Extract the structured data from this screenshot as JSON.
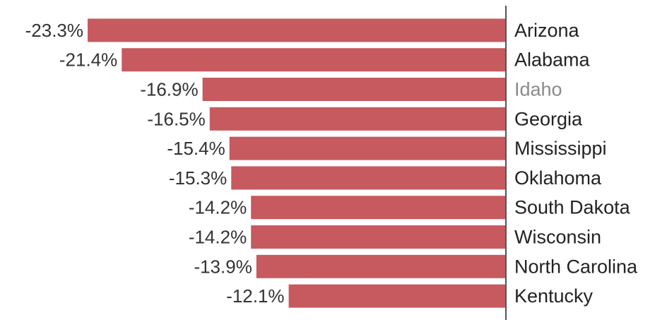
{
  "chart_data": {
    "type": "bar",
    "orientation": "horizontal",
    "title": "",
    "xlabel": "",
    "ylabel": "",
    "categories": [
      "Arizona",
      "Alabama",
      "Idaho",
      "Georgia",
      "Mississippi",
      "Oklahoma",
      "South Dakota",
      "Wisconsin",
      "North Carolina",
      "Kentucky"
    ],
    "values": [
      -23.3,
      -21.4,
      -16.9,
      -16.5,
      -15.4,
      -15.3,
      -14.2,
      -14.2,
      -13.9,
      -12.1
    ],
    "value_labels": [
      "-23.3%",
      "-21.4%",
      "-16.9%",
      "-16.5%",
      "-15.4%",
      "-15.3%",
      "-14.2%",
      "-14.2%",
      "-13.9%",
      "-12.1%"
    ],
    "muted_categories": [
      "Idaho"
    ],
    "xlim": [
      -23.3,
      0
    ],
    "grid": false,
    "legend": "none",
    "bar_color": "#c65a5f"
  }
}
